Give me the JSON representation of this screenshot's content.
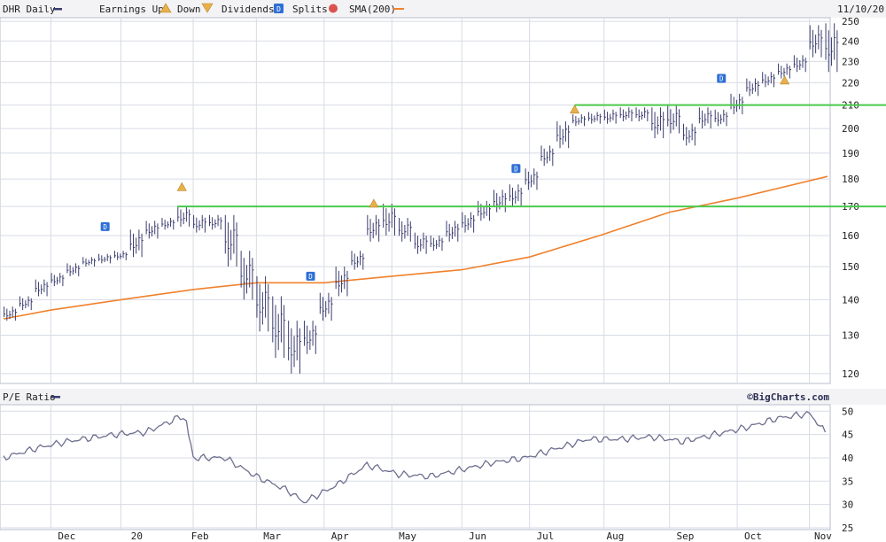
{
  "legend": {
    "ticker_label": "DHR Daily",
    "earnings_up": "Earnings Up",
    "down": "Down",
    "dividends": "Dividends",
    "splits": "Splits",
    "sma": "SMA(200)",
    "date": "11/10/20",
    "dividend_marker": "D"
  },
  "lower_legend": {
    "label": "P/E Ratio"
  },
  "watermark": "©BigCharts.com",
  "colors": {
    "price_bars": "#3a3d6e",
    "sma": "#f0812d",
    "resistance_lines": "#4cc94c",
    "grid": "#d8dbe6",
    "earnings_marker": "#e8b04a",
    "dividend_marker": "#2e6fd6",
    "split_marker": "#d9534f",
    "pe_line": "#6e6f8f"
  },
  "chart_data": [
    {
      "type": "line",
      "title": "DHR Daily",
      "x_axis": {
        "tick_labels": [
          "Dec",
          "20",
          "Feb",
          "Mar",
          "Apr",
          "May",
          "Jun",
          "Jul",
          "Aug",
          "Sep",
          "Oct",
          "Nov"
        ]
      },
      "y_axis": {
        "ticks": [
          120,
          130,
          140,
          150,
          160,
          170,
          180,
          190,
          200,
          210,
          220,
          230,
          240,
          250
        ],
        "range": [
          118,
          251
        ],
        "scale": "log"
      },
      "grid": true,
      "series": [
        {
          "name": "DHR Daily",
          "style": "ohlc-bars",
          "x": [
            "2019-11-11",
            "2019-11-18",
            "2019-11-25",
            "2019-12-02",
            "2019-12-09",
            "2019-12-16",
            "2019-12-23",
            "2019-12-30",
            "2020-01-06",
            "2020-01-13",
            "2020-01-20",
            "2020-01-27",
            "2020-02-03",
            "2020-02-10",
            "2020-02-17",
            "2020-02-24",
            "2020-03-02",
            "2020-03-09",
            "2020-03-16",
            "2020-03-23",
            "2020-03-30",
            "2020-04-06",
            "2020-04-13",
            "2020-04-20",
            "2020-04-27",
            "2020-05-04",
            "2020-05-11",
            "2020-05-18",
            "2020-05-25",
            "2020-06-01",
            "2020-06-08",
            "2020-06-15",
            "2020-06-22",
            "2020-06-29",
            "2020-07-06",
            "2020-07-13",
            "2020-07-20",
            "2020-07-27",
            "2020-08-03",
            "2020-08-10",
            "2020-08-17",
            "2020-08-24",
            "2020-08-31",
            "2020-09-07",
            "2020-09-14",
            "2020-09-21",
            "2020-09-28",
            "2020-10-05",
            "2020-10-12",
            "2020-10-19",
            "2020-10-26",
            "2020-11-02",
            "2020-11-09"
          ],
          "high": [
            138,
            141,
            146,
            148,
            151,
            153,
            154,
            155,
            162,
            165,
            166,
            170,
            167,
            167,
            167,
            155,
            147,
            141,
            134,
            134,
            142,
            150,
            155,
            167,
            171,
            166,
            161,
            160,
            165,
            168,
            172,
            176,
            178,
            184,
            193,
            203,
            206,
            207,
            208,
            209,
            209,
            209,
            210,
            202,
            209,
            208,
            215,
            222,
            225,
            229,
            233,
            248,
            249
          ],
          "low": [
            134,
            137,
            141,
            144,
            147,
            150,
            151,
            152,
            153,
            159,
            162,
            163,
            161,
            162,
            150,
            140,
            131,
            124,
            120,
            125,
            134,
            141,
            149,
            158,
            160,
            158,
            154,
            155,
            158,
            161,
            165,
            168,
            170,
            176,
            185,
            192,
            201,
            202,
            202,
            203,
            203,
            196,
            198,
            193,
            200,
            201,
            206,
            214,
            218,
            222,
            225,
            232,
            225
          ]
        },
        {
          "name": "SMA(200)",
          "style": "line",
          "x": [
            "2019-11-11",
            "2019-12-02",
            "2020-01-02",
            "2020-02-03",
            "2020-03-02",
            "2020-04-01",
            "2020-05-01",
            "2020-06-01",
            "2020-07-01",
            "2020-08-01",
            "2020-09-01",
            "2020-10-01",
            "2020-11-10"
          ],
          "y": [
            134.5,
            137,
            140,
            143,
            145,
            145,
            147,
            149,
            153,
            160,
            168,
            173,
            181
          ]
        },
        {
          "name": "Resistance 170",
          "style": "hline",
          "value": 170,
          "x_start": "2020-01-27",
          "x_end": "2020-11-10"
        },
        {
          "name": "Resistance 210",
          "style": "hline",
          "value": 210,
          "x_start": "2020-07-21",
          "x_end": "2020-11-10"
        },
        {
          "name": "Earnings Up",
          "style": "markers",
          "x": [
            "2020-01-29",
            "2020-04-23",
            "2020-07-21",
            "2020-10-22"
          ],
          "y": [
            177,
            171,
            208,
            221
          ]
        },
        {
          "name": "Dividends",
          "style": "markers",
          "x": [
            "2019-12-26",
            "2020-03-26",
            "2020-06-25",
            "2020-09-24"
          ],
          "y": [
            163,
            147,
            184,
            222
          ]
        }
      ]
    },
    {
      "type": "line",
      "title": "P/E Ratio",
      "x_axis": {
        "tick_labels": [
          "Dec",
          "20",
          "Feb",
          "Mar",
          "Apr",
          "May",
          "Jun",
          "Jul",
          "Aug",
          "Sep",
          "Oct",
          "Nov"
        ]
      },
      "y_axis": {
        "ticks": [
          25,
          30,
          35,
          40,
          45,
          50
        ],
        "range": [
          25,
          51
        ]
      },
      "grid": true,
      "series": [
        {
          "name": "P/E Ratio",
          "x": [
            "2019-11-11",
            "2019-11-25",
            "2019-12-09",
            "2019-12-30",
            "2020-01-13",
            "2020-01-27",
            "2020-01-31",
            "2020-02-03",
            "2020-02-17",
            "2020-03-02",
            "2020-03-16",
            "2020-03-23",
            "2020-04-06",
            "2020-04-20",
            "2020-05-04",
            "2020-05-18",
            "2020-06-01",
            "2020-06-15",
            "2020-06-29",
            "2020-07-13",
            "2020-07-27",
            "2020-08-10",
            "2020-08-24",
            "2020-09-07",
            "2020-09-21",
            "2020-10-05",
            "2020-10-19",
            "2020-11-02",
            "2020-11-09"
          ],
          "y": [
            40,
            42,
            43.5,
            45,
            45.5,
            48.5,
            48,
            40,
            40,
            36,
            33,
            30.5,
            34,
            38.5,
            36.5,
            36,
            37.5,
            39,
            40,
            42,
            44,
            44,
            44.5,
            43.5,
            45,
            46.5,
            48.5,
            49.5,
            45.5
          ]
        }
      ]
    }
  ]
}
